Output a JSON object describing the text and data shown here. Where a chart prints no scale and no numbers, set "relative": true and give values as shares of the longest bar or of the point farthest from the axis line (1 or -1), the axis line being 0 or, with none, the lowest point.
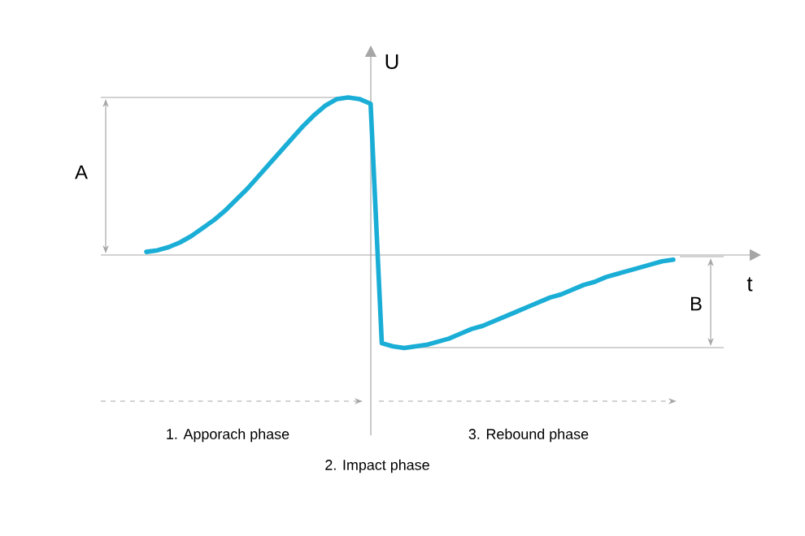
{
  "chart_data": {
    "type": "line",
    "relative": true,
    "xlabel": "t",
    "ylabel": "U",
    "color": "#1aaed6",
    "categories": [
      null,
      null,
      null,
      null,
      null,
      null,
      null,
      null,
      null,
      null,
      null,
      null,
      null,
      null,
      null,
      null,
      null,
      null,
      null,
      null,
      null,
      null,
      null,
      null,
      null,
      null,
      null,
      null,
      null,
      null,
      null,
      null,
      null,
      null,
      null,
      null,
      null,
      null,
      null,
      null,
      null,
      null,
      null,
      null,
      null,
      null,
      null,
      null
    ],
    "values": [
      0.02,
      0.03,
      0.05,
      0.08,
      0.12,
      0.17,
      0.22,
      0.28,
      0.35,
      0.42,
      0.5,
      0.58,
      0.66,
      0.74,
      0.82,
      0.89,
      0.95,
      0.99,
      1.0,
      0.99,
      0.96,
      -0.56,
      -0.58,
      -0.59,
      -0.58,
      -0.57,
      -0.55,
      -0.53,
      -0.5,
      -0.47,
      -0.45,
      -0.42,
      -0.39,
      -0.36,
      -0.33,
      -0.3,
      -0.27,
      -0.25,
      -0.22,
      -0.19,
      -0.17,
      -0.14,
      -0.12,
      -0.1,
      -0.08,
      -0.06,
      -0.04,
      -0.03
    ],
    "annotations": [
      "A",
      "B",
      "1. Apporach phase",
      "2. Impact phase",
      "3. Rebound phase"
    ]
  }
}
